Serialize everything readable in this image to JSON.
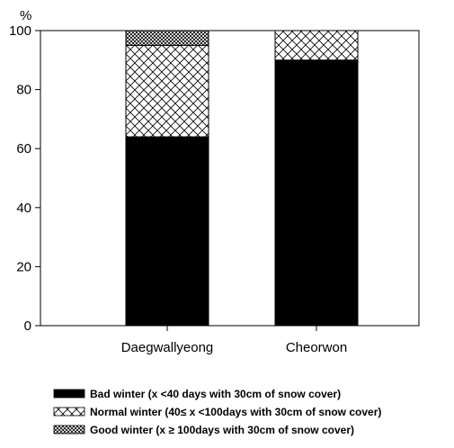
{
  "chart_data": {
    "type": "bar",
    "stacked": true,
    "ylabel": "%",
    "ylim": [
      0,
      100
    ],
    "yticks": [
      0,
      20,
      40,
      60,
      80,
      100
    ],
    "grid": false,
    "categories": [
      "Daegwallyeong",
      "Cheorwon"
    ],
    "series": [
      {
        "name": "Bad winter (x <40 days with 30cm of snow cover)",
        "values": [
          64,
          90
        ],
        "fill": "solid",
        "color": "#000000"
      },
      {
        "name": "Normal winter (40≤  x <100days with 30cm of snow cover)",
        "values": [
          31,
          10
        ],
        "fill": "crosshatch",
        "color": "#000000"
      },
      {
        "name": "Good winter (x ≥  100days with 30cm of snow cover)",
        "values": [
          5,
          0
        ],
        "fill": "dense-crosshatch",
        "color": "#000000"
      }
    ],
    "legend_position": "bottom"
  }
}
